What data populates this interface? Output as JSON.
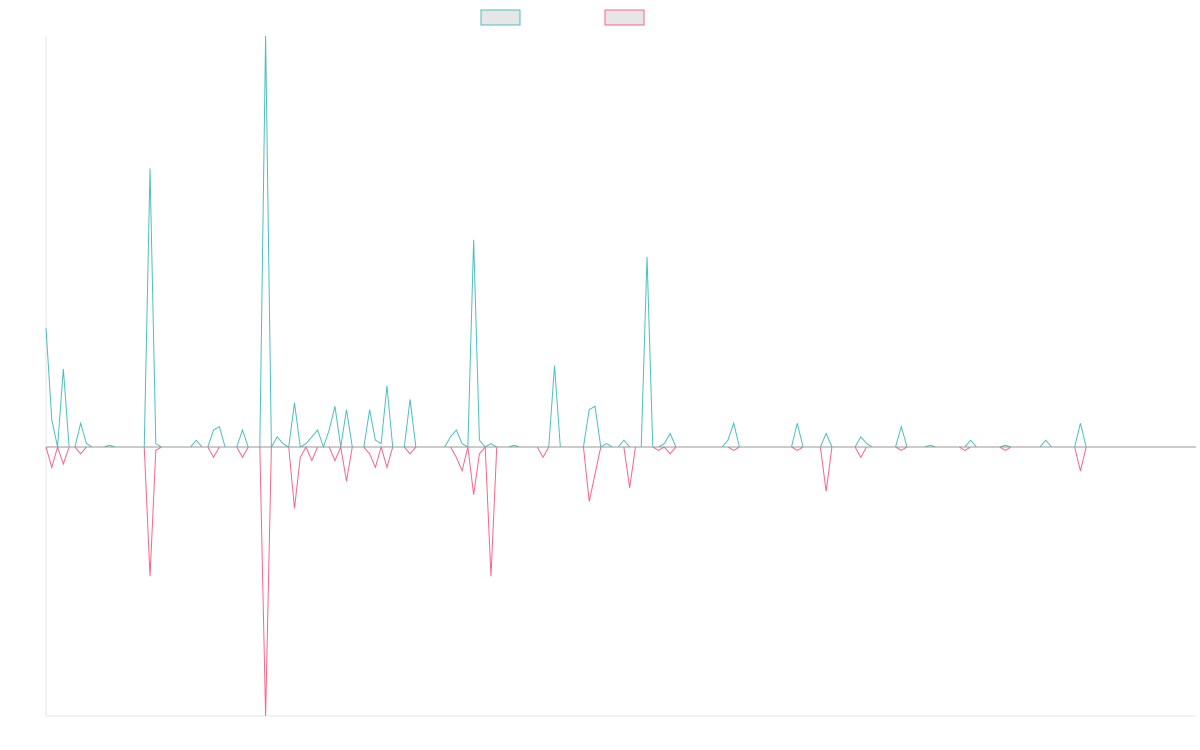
{
  "colors": {
    "background": "#ffffff",
    "axis": "#e6e6e6",
    "series_up": "#4bc0c0",
    "series_up_fill": "#e6e6e6",
    "series_down": "#ff6384",
    "series_down_fill": "#e6e6e6",
    "zero_line": "#9a9a9a"
  },
  "chart_data": {
    "type": "line",
    "title": "",
    "xlabel": "",
    "ylabel": "",
    "grid": false,
    "legend_placement": "top-center",
    "x_count": 200,
    "ylim": [
      -100,
      100
    ],
    "series": [
      {
        "legend_label": "",
        "color_key": "series_up",
        "points": [
          [
            0,
            35
          ],
          [
            1,
            8
          ],
          [
            3,
            23
          ],
          [
            6,
            7
          ],
          [
            7,
            1
          ],
          [
            11,
            0.5
          ],
          [
            18,
            82
          ],
          [
            19,
            1
          ],
          [
            26,
            2
          ],
          [
            29,
            5
          ],
          [
            30,
            6
          ],
          [
            34,
            5
          ],
          [
            38,
            121
          ],
          [
            40,
            3
          ],
          [
            41,
            1
          ],
          [
            43,
            13
          ],
          [
            45,
            1
          ],
          [
            46,
            3
          ],
          [
            47,
            5
          ],
          [
            49,
            5
          ],
          [
            50,
            12
          ],
          [
            52,
            11
          ],
          [
            56,
            11
          ],
          [
            57,
            2
          ],
          [
            58,
            1
          ],
          [
            59,
            18
          ],
          [
            63,
            14
          ],
          [
            70,
            3
          ],
          [
            71,
            5
          ],
          [
            72,
            1
          ],
          [
            74,
            61
          ],
          [
            75,
            2
          ],
          [
            77,
            1
          ],
          [
            81,
            0.5
          ],
          [
            88,
            24
          ],
          [
            94,
            11
          ],
          [
            95,
            12
          ],
          [
            97,
            1
          ],
          [
            100,
            2
          ],
          [
            104,
            56
          ],
          [
            107,
            1
          ],
          [
            108,
            4
          ],
          [
            118,
            2
          ],
          [
            119,
            7
          ],
          [
            130,
            7
          ],
          [
            135,
            4
          ],
          [
            141,
            3
          ],
          [
            142,
            1
          ],
          [
            148,
            6
          ],
          [
            153,
            0.5
          ],
          [
            160,
            2
          ],
          [
            166,
            0.5
          ],
          [
            173,
            2
          ],
          [
            179,
            7
          ]
        ]
      },
      {
        "legend_label": "",
        "color_key": "series_down",
        "points": [
          [
            1,
            -6
          ],
          [
            3,
            -5
          ],
          [
            6,
            -2
          ],
          [
            18,
            -38
          ],
          [
            19,
            -1
          ],
          [
            29,
            -3
          ],
          [
            34,
            -3
          ],
          [
            38,
            -79
          ],
          [
            43,
            -18
          ],
          [
            44,
            -3
          ],
          [
            46,
            -4
          ],
          [
            50,
            -4
          ],
          [
            52,
            -10
          ],
          [
            56,
            -2
          ],
          [
            57,
            -6
          ],
          [
            59,
            -6
          ],
          [
            63,
            -2
          ],
          [
            71,
            -3
          ],
          [
            72,
            -7
          ],
          [
            74,
            -14
          ],
          [
            75,
            -2
          ],
          [
            77,
            -38
          ],
          [
            86,
            -3
          ],
          [
            94,
            -16
          ],
          [
            95,
            -8
          ],
          [
            101,
            -12
          ],
          [
            106,
            -1
          ],
          [
            108,
            -2
          ],
          [
            119,
            -1
          ],
          [
            130,
            -1
          ],
          [
            135,
            -13
          ],
          [
            141,
            -3
          ],
          [
            148,
            -1
          ],
          [
            159,
            -1
          ],
          [
            166,
            -1
          ],
          [
            179,
            -7
          ]
        ]
      }
    ]
  }
}
